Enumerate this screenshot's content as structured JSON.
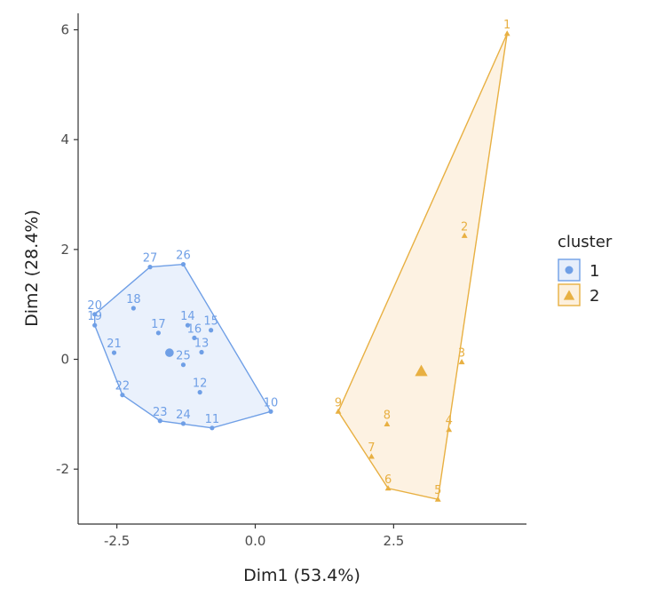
{
  "chart_data": {
    "type": "scatter",
    "xlabel": "Dim1 (53.4%)",
    "ylabel": "Dim2 (28.4%)",
    "xlim": [
      -3.2,
      4.9
    ],
    "ylim": [
      -3.0,
      6.3
    ],
    "x_ticks": [
      -2.5,
      0.0,
      2.5
    ],
    "x_tick_labels": [
      "-2.5",
      "0.0",
      "2.5"
    ],
    "y_ticks": [
      -2,
      0,
      2,
      4,
      6
    ],
    "y_tick_labels": [
      "-2",
      "0",
      "2",
      "4",
      "6"
    ],
    "grid": false,
    "legend": {
      "title": "cluster",
      "position": "right",
      "entries": [
        {
          "label": "1",
          "shape": "circle",
          "color": "#6f9fe6",
          "fill": "#e6eefb"
        },
        {
          "label": "2",
          "shape": "triangle",
          "color": "#e8b042",
          "fill": "#fdf0dd"
        }
      ]
    },
    "clusters": [
      {
        "name": "1",
        "shape": "circle",
        "color": "#6f9fe6",
        "fill": "#e6eefb",
        "centroid": {
          "x": -1.55,
          "y": 0.12
        },
        "hull": [
          "10",
          "26",
          "27",
          "20",
          "19",
          "22",
          "23",
          "11"
        ],
        "points": [
          {
            "label": "10",
            "x": 0.28,
            "y": -0.95
          },
          {
            "label": "11",
            "x": -0.78,
            "y": -1.25
          },
          {
            "label": "12",
            "x": -1.0,
            "y": -0.6
          },
          {
            "label": "13",
            "x": -0.97,
            "y": 0.13
          },
          {
            "label": "14",
            "x": -1.22,
            "y": 0.62
          },
          {
            "label": "15",
            "x": -0.8,
            "y": 0.53
          },
          {
            "label": "16",
            "x": -1.1,
            "y": 0.39
          },
          {
            "label": "17",
            "x": -1.75,
            "y": 0.48
          },
          {
            "label": "18",
            "x": -2.2,
            "y": 0.93
          },
          {
            "label": "19",
            "x": -2.9,
            "y": 0.62
          },
          {
            "label": "20",
            "x": -2.9,
            "y": 0.82
          },
          {
            "label": "21",
            "x": -2.55,
            "y": 0.12
          },
          {
            "label": "22",
            "x": -2.4,
            "y": -0.65
          },
          {
            "label": "23",
            "x": -1.72,
            "y": -1.12
          },
          {
            "label": "24",
            "x": -1.3,
            "y": -1.17
          },
          {
            "label": "25",
            "x": -1.3,
            "y": -0.1
          },
          {
            "label": "26",
            "x": -1.3,
            "y": 1.73
          },
          {
            "label": "27",
            "x": -1.9,
            "y": 1.68
          }
        ]
      },
      {
        "name": "2",
        "shape": "triangle",
        "color": "#e8b042",
        "fill": "#fdf0dd",
        "centroid": {
          "x": 3.0,
          "y": -0.22
        },
        "hull": [
          "1",
          "9",
          "6",
          "5"
        ],
        "points": [
          {
            "label": "1",
            "x": 4.55,
            "y": 5.93
          },
          {
            "label": "2",
            "x": 3.78,
            "y": 2.25
          },
          {
            "label": "3",
            "x": 3.73,
            "y": -0.05
          },
          {
            "label": "4",
            "x": 3.5,
            "y": -1.28
          },
          {
            "label": "5",
            "x": 3.3,
            "y": -2.55
          },
          {
            "label": "6",
            "x": 2.4,
            "y": -2.35
          },
          {
            "label": "7",
            "x": 2.1,
            "y": -1.77
          },
          {
            "label": "8",
            "x": 2.38,
            "y": -1.18
          },
          {
            "label": "9",
            "x": 1.5,
            "y": -0.95
          }
        ]
      }
    ]
  }
}
